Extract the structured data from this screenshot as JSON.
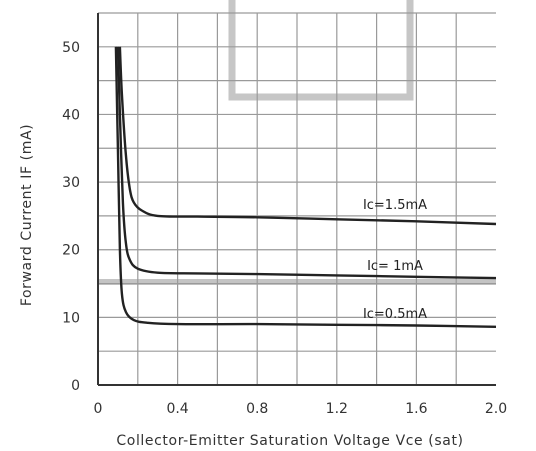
{
  "chart_data": {
    "type": "line",
    "xlabel": "Collector-Emitter Saturation Voltage Vce (sat)",
    "ylabel": "Forward Current IF (mA)",
    "xlim": [
      0,
      2.0
    ],
    "ylim": [
      0,
      55
    ],
    "x_ticks": [
      "0",
      "0.4",
      "0.8",
      "1.2",
      "1.6",
      "2.0"
    ],
    "y_ticks": [
      "0",
      "10",
      "20",
      "30",
      "40",
      "50"
    ],
    "grid": true,
    "series": [
      {
        "name": "Ic=1.5mA",
        "x": [
          0.11,
          0.12,
          0.14,
          0.16,
          0.18,
          0.22,
          0.3,
          0.5,
          0.8,
          1.2,
          1.6,
          2.0
        ],
        "y": [
          50,
          43,
          34,
          29,
          27,
          25.8,
          25.0,
          24.9,
          24.8,
          24.5,
          24.2,
          23.8
        ]
      },
      {
        "name": "Ic= 1mA",
        "x": [
          0.1,
          0.11,
          0.125,
          0.14,
          0.16,
          0.2,
          0.3,
          0.5,
          0.8,
          1.2,
          1.6,
          2.0
        ],
        "y": [
          50,
          40,
          27,
          21,
          18.5,
          17.2,
          16.6,
          16.5,
          16.4,
          16.2,
          16.0,
          15.8
        ]
      },
      {
        "name": "Ic=0.5mA",
        "x": [
          0.09,
          0.1,
          0.11,
          0.12,
          0.14,
          0.18,
          0.25,
          0.4,
          0.8,
          1.2,
          1.6,
          2.0
        ],
        "y": [
          50,
          35,
          20,
          13.5,
          10.8,
          9.6,
          9.2,
          9.0,
          9.0,
          8.9,
          8.8,
          8.6
        ]
      }
    ],
    "colors": {
      "curve": "#222222",
      "grid": "#9a9a9a",
      "axis": "#333333",
      "overlay": "#c4c4c4"
    }
  }
}
